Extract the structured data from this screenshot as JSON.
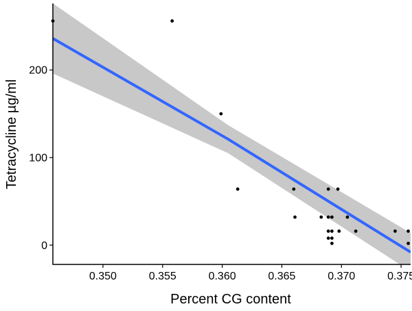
{
  "chart_data": {
    "type": "scatter",
    "title": "",
    "xlabel": "Percent CG content",
    "ylabel": "Tetracycline µg/ml",
    "xlim": [
      0.3458,
      0.3758
    ],
    "ylim": [
      -22,
      276
    ],
    "x_ticks": [
      0.35,
      0.355,
      0.36,
      0.365,
      0.37,
      0.375
    ],
    "x_tick_labels": [
      "0.350",
      "0.355",
      "0.360",
      "0.365",
      "0.370",
      "0.375"
    ],
    "y_ticks": [
      0,
      100,
      200
    ],
    "y_tick_labels": [
      "0",
      "100",
      "200"
    ],
    "grid": false,
    "legend": "none",
    "series": [
      {
        "points": [
          {
            "x": 0.3458,
            "y": 256
          },
          {
            "x": 0.3558,
            "y": 256
          },
          {
            "x": 0.3599,
            "y": 150
          },
          {
            "x": 0.3613,
            "y": 64
          },
          {
            "x": 0.366,
            "y": 64
          },
          {
            "x": 0.3661,
            "y": 32
          },
          {
            "x": 0.3683,
            "y": 32
          },
          {
            "x": 0.3689,
            "y": 64
          },
          {
            "x": 0.3689,
            "y": 32
          },
          {
            "x": 0.3689,
            "y": 16
          },
          {
            "x": 0.3689,
            "y": 8
          },
          {
            "x": 0.3692,
            "y": 32
          },
          {
            "x": 0.3692,
            "y": 16
          },
          {
            "x": 0.3692,
            "y": 8
          },
          {
            "x": 0.3692,
            "y": 2
          },
          {
            "x": 0.3697,
            "y": 64
          },
          {
            "x": 0.3698,
            "y": 16
          },
          {
            "x": 0.3705,
            "y": 32
          },
          {
            "x": 0.3712,
            "y": 16
          },
          {
            "x": 0.3745,
            "y": 16
          },
          {
            "x": 0.3756,
            "y": 16
          },
          {
            "x": 0.3756,
            "y": 2
          }
        ]
      }
    ],
    "regression": {
      "x": [
        0.3458,
        0.3605,
        0.3758
      ],
      "fit": [
        236,
        121,
        -8
      ],
      "ci_lower": [
        196,
        105,
        -30
      ],
      "ci_upper": [
        276,
        137,
        14
      ]
    },
    "colors": {
      "points": "#000000",
      "line": "#3366FF",
      "ribbon": "#C8C8C8",
      "axis": "#000000"
    }
  }
}
